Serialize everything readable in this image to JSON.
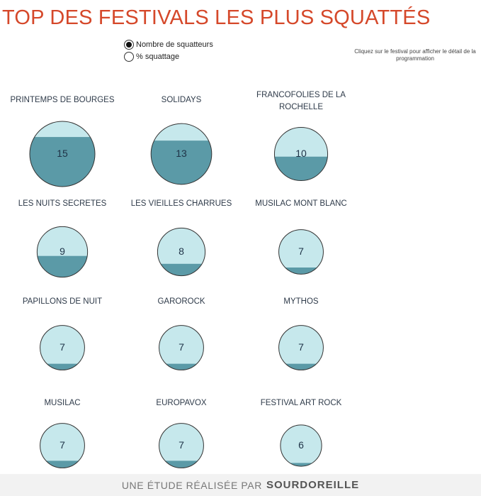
{
  "title": "TOP DES FESTIVALS LES PLUS SQUATTÉS",
  "colors": {
    "title": "#d5482a",
    "circle_fill": "#c6e8ec",
    "water_fill": "#5b9aa7",
    "circle_stroke": "#333333"
  },
  "toggle": {
    "options": [
      {
        "label": "Nombre de squatteurs",
        "selected": true
      },
      {
        "label": "% squattage",
        "selected": false
      }
    ]
  },
  "hint": "Cliquez sur le festival pour afficher le détail de la programmation",
  "footer": {
    "prefix": "UNE ÉTUDE RÉALISÉE PAR",
    "brand": "SOURDOREILLE"
  },
  "chart_data": {
    "type": "bubble",
    "measure": "Nombre de squatteurs",
    "categories": [
      "PRINTEMPS DE BOURGES",
      "SOLIDAYS",
      "FRANCOFOLIES DE LA ROCHELLE",
      "LES NUITS SECRETES",
      "LES VIEILLES CHARRUES",
      "MUSILAC MONT BLANC",
      "PAPILLONS DE NUIT",
      "GAROROCK",
      "MYTHOS",
      "MUSILAC",
      "EUROPAVOX",
      "FESTIVAL ART ROCK"
    ],
    "values": [
      15,
      13,
      10,
      9,
      8,
      7,
      7,
      7,
      7,
      7,
      7,
      6
    ],
    "fill_fraction": [
      0.76,
      0.72,
      0.45,
      0.42,
      0.25,
      0.15,
      0.14,
      0.14,
      0.14,
      0.16,
      0.16,
      0.08
    ]
  }
}
